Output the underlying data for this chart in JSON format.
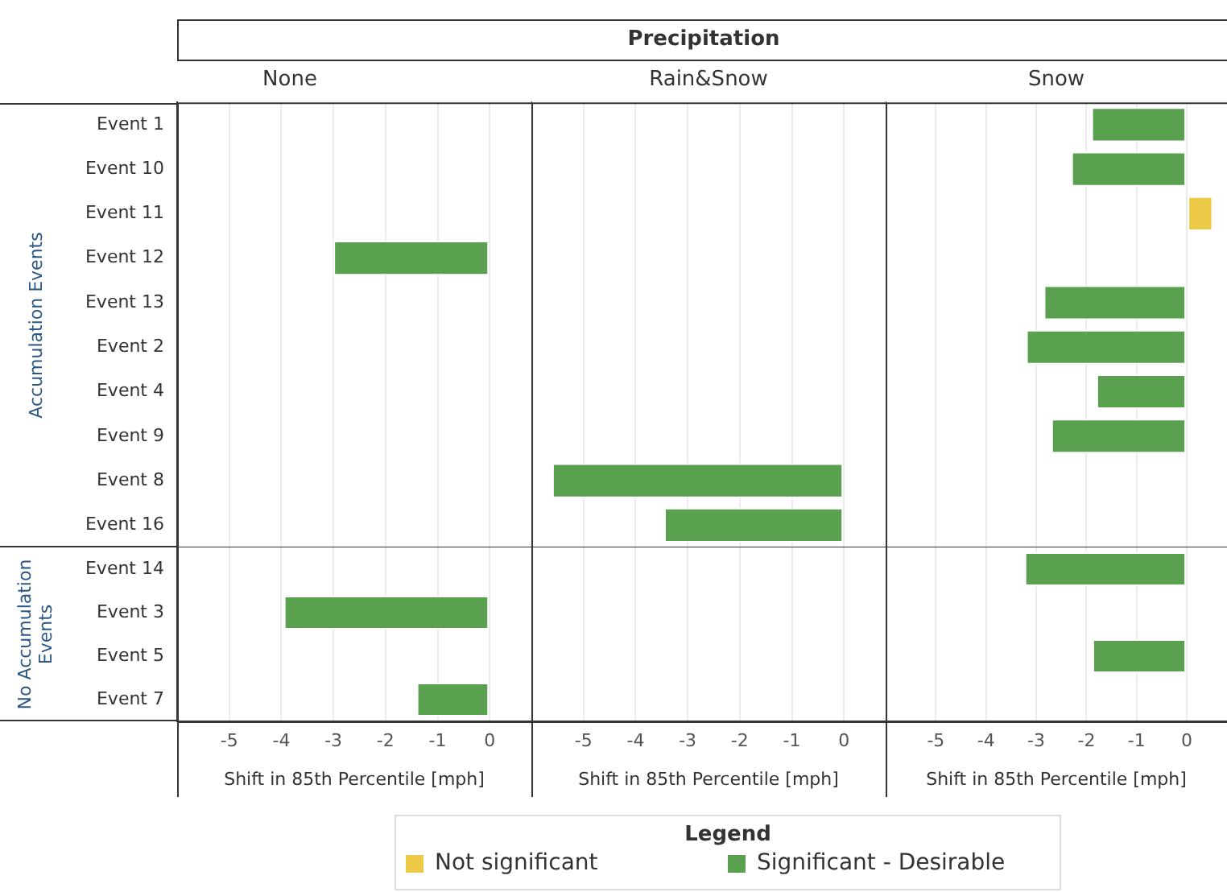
{
  "chart_data": [
    {
      "type": "bar",
      "orientation": "horizontal",
      "stacked": true,
      "title": "None",
      "annotations": [
        "Precipitation",
        "Accumulation Events"
      ],
      "categories": [
        "Event 1",
        "Event 10",
        "Event 11",
        "Event 12",
        "Event 13",
        "Event 2",
        "Event 4",
        "Event 9",
        "Event 8",
        "Event 16"
      ],
      "series": [
        {
          "name": "Not significant",
          "color": "#edc948",
          "values": [
            null,
            null,
            null,
            null,
            null,
            null,
            null,
            null,
            null,
            null
          ]
        },
        {
          "name": "Significant - Desirable",
          "color": "#59a14f",
          "values": [
            null,
            null,
            null,
            -3.0,
            null,
            null,
            null,
            null,
            null,
            null
          ]
        }
      ],
      "xlim": [
        -6,
        0.8
      ],
      "xticks": [
        -5,
        -4,
        -3,
        -2,
        -1,
        0
      ],
      "grid": "x",
      "tick_labels": "y",
      "legend": "bottom",
      "legend_title": "Legend"
    },
    {
      "type": "bar",
      "orientation": "horizontal",
      "stacked": true,
      "title": "Rain&Snow",
      "categories": [
        null,
        null,
        null,
        null,
        null,
        null,
        null,
        null,
        null,
        null
      ],
      "series": [
        {
          "color": "#edc948",
          "values": [
            null,
            null,
            null,
            null,
            null,
            null,
            null,
            null,
            null,
            null
          ]
        },
        {
          "color": "#59a14f",
          "values": [
            null,
            null,
            null,
            null,
            null,
            null,
            null,
            null,
            -5.6,
            -3.45
          ]
        }
      ],
      "xlim": [
        -6,
        0.8
      ],
      "xticks": [
        -5,
        -4,
        -3,
        -2,
        -1,
        0
      ],
      "grid": "x",
      "tick_labels": false
    },
    {
      "type": "bar",
      "orientation": "horizontal",
      "stacked": true,
      "title": "Snow",
      "categories": [
        null,
        null,
        null,
        null,
        null,
        null,
        null,
        null,
        null,
        null
      ],
      "series": [
        {
          "color": "#edc948",
          "values": [
            null,
            null,
            0.52,
            null,
            null,
            null,
            null,
            null,
            null,
            null
          ]
        },
        {
          "color": "#59a14f",
          "values": [
            -1.9,
            -2.3,
            null,
            null,
            -2.85,
            -3.2,
            -1.8,
            -2.7,
            null,
            null
          ]
        }
      ],
      "xlim": [
        -6,
        0.8
      ],
      "xticks": [
        -5,
        -4,
        -3,
        -2,
        -1,
        0
      ],
      "grid": "x",
      "tick_labels": false
    },
    {
      "type": "bar",
      "orientation": "horizontal",
      "stacked": true,
      "xlabel": "Shift in 85th Percentile [mph]",
      "annotations": [
        "No Accumulation Events"
      ],
      "categories": [
        "Event 14",
        "Event 3",
        "Event 5",
        "Event 7"
      ],
      "series": [
        {
          "color": "#edc948",
          "values": [
            null,
            null,
            null,
            null
          ]
        },
        {
          "color": "#59a14f",
          "values": [
            null,
            -3.95,
            null,
            -1.4
          ]
        }
      ],
      "xlim": [
        -6,
        0.8
      ],
      "xticks": [
        -5,
        -4,
        -3,
        -2,
        -1,
        0
      ],
      "grid": "x"
    },
    {
      "type": "bar",
      "orientation": "horizontal",
      "stacked": true,
      "xlabel": "Shift in 85th Percentile [mph]",
      "categories": [
        null,
        null,
        null,
        null
      ],
      "series": [
        {
          "color": "#edc948",
          "values": [
            null,
            null,
            null,
            null
          ]
        },
        {
          "color": "#59a14f",
          "values": [
            null,
            null,
            null,
            null
          ]
        }
      ],
      "xlim": [
        -6,
        0.8
      ],
      "xticks": [
        -5,
        -4,
        -3,
        -2,
        -1,
        0
      ],
      "grid": "x",
      "tick_labels": "x"
    },
    {
      "type": "bar",
      "orientation": "horizontal",
      "stacked": true,
      "xlabel": "Shift in 85th Percentile [mph]",
      "categories": [
        null,
        null,
        null,
        null
      ],
      "series": [
        {
          "color": "#edc948",
          "values": [
            null,
            null,
            null,
            null
          ]
        },
        {
          "color": "#59a14f",
          "values": [
            -3.23,
            null,
            -1.88,
            null
          ]
        }
      ],
      "xlim": [
        -6,
        0.8
      ],
      "xticks": [
        -5,
        -4,
        -3,
        -2,
        -1,
        0
      ],
      "grid": "x",
      "tick_labels": "x"
    }
  ]
}
